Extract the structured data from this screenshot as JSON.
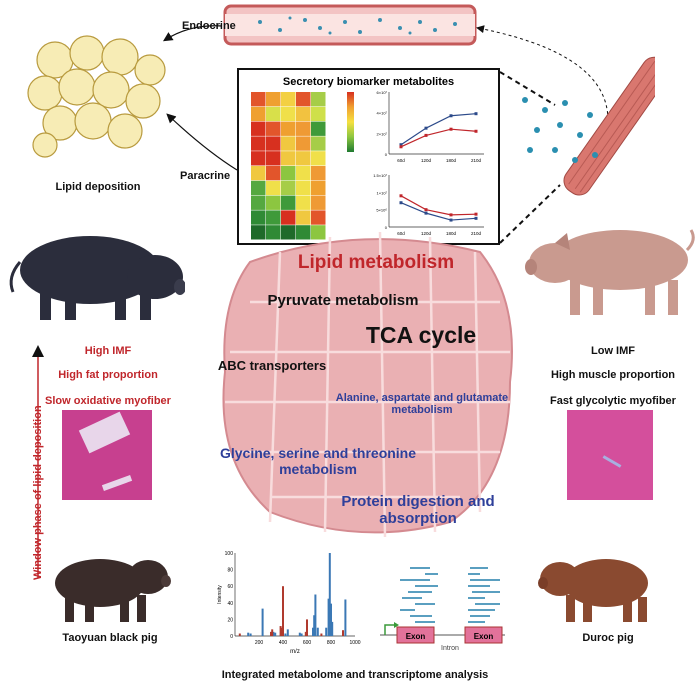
{
  "top": {
    "endocrine": "Endocrine",
    "paracrine": "Paracrine",
    "lipid_deposition": "Lipid deposition"
  },
  "box": {
    "title": "Secretory biomarker metabolites"
  },
  "left": {
    "traits": [
      "High IMF",
      "High fat proportion",
      "Slow oxidative myofiber"
    ],
    "axis_label": "Window phase of lipid deposition",
    "pig_label": "Taoyuan black pig"
  },
  "right": {
    "traits": [
      "Low IMF",
      "High muscle proportion",
      "Fast glycolytic myofiber"
    ],
    "pig_label": "Duroc pig"
  },
  "center": {
    "pathways": [
      "Lipid metabolism",
      "Pyruvate metabolism",
      "TCA cycle",
      "ABC transporters",
      "Alanine, aspartate and glutamate metabolism",
      "Glycine, serine and threonine metabolism",
      "Protein digestion and absorption"
    ]
  },
  "gene": {
    "exon1": "Exon",
    "intron": "Intron",
    "exon2": "Exon"
  },
  "bottom": {
    "caption": "Integrated metabolome and transcriptome analysis"
  },
  "colors": {
    "red_text": "#c0262b",
    "blue_text": "#2e3f9a",
    "muscle_pink": "#e8a3a8",
    "series_blue": "#2c4a8a",
    "series_red": "#c0262b"
  },
  "chart_data": [
    {
      "type": "heatmap",
      "colorscale": [
        "#d7301f",
        "#f0a030",
        "#f5e040",
        "#8cc640",
        "#1f7a30"
      ],
      "cells": [
        [
          "#e2552b",
          "#efa030",
          "#f3d043",
          "#e2552b",
          "#a6cd48"
        ],
        [
          "#efa030",
          "#d8e04a",
          "#f0e04a",
          "#f2c240",
          "#cfe04a"
        ],
        [
          "#d7301f",
          "#e2552b",
          "#efa030",
          "#ef9a35",
          "#3f9a3a"
        ],
        [
          "#d7301f",
          "#d7301f",
          "#f0c840",
          "#ef9a35",
          "#a6cd48"
        ],
        [
          "#d7301f",
          "#d7301f",
          "#f0c840",
          "#f0c840",
          "#f0e04a"
        ],
        [
          "#f0c840",
          "#e2552b",
          "#8cc640",
          "#f0e04a",
          "#ef9a35"
        ],
        [
          "#55a840",
          "#f0e04a",
          "#a6cd48",
          "#f0e04a",
          "#efa030"
        ],
        [
          "#55a840",
          "#8cc640",
          "#3f9a3a",
          "#f0e04a",
          "#ef9a35"
        ],
        [
          "#2f8a35",
          "#3f9a3a",
          "#d7301f",
          "#f0c840",
          "#e2552b"
        ],
        [
          "#1f6a2a",
          "#2f8a35",
          "#1f6a2a",
          "#2f8a35",
          "#8cc640"
        ]
      ]
    },
    {
      "type": "line",
      "categories": [
        "60d",
        "120d",
        "180d",
        "210d"
      ],
      "yticks": [
        "0",
        "2×10⁷",
        "4×10⁷",
        "6×10⁷"
      ],
      "ylim": [
        0,
        6
      ],
      "series": [
        {
          "color": "#2c4a8a",
          "values": [
            0.9,
            2.5,
            3.7,
            3.9
          ]
        },
        {
          "color": "#c0262b",
          "values": [
            0.7,
            1.8,
            2.4,
            2.2
          ]
        }
      ]
    },
    {
      "type": "line",
      "categories": [
        "60d",
        "120d",
        "180d",
        "210d"
      ],
      "yticks": [
        "0",
        "5×10⁶",
        "1×10⁷",
        "1.5×10⁷"
      ],
      "ylim": [
        0,
        15
      ],
      "series": [
        {
          "color": "#2c4a8a",
          "values": [
            7,
            4,
            2,
            2.5
          ]
        },
        {
          "color": "#c0262b",
          "values": [
            9,
            5,
            3.5,
            3.7
          ]
        }
      ]
    },
    {
      "type": "bar",
      "xlabel": "m/z",
      "ylabel": "Intensity",
      "xlim": [
        0,
        1000
      ],
      "ylim": [
        0,
        100
      ],
      "xticks": [
        "200",
        "400",
        "600",
        "800",
        "1000"
      ],
      "yticks": [
        "0",
        "20",
        "40",
        "60",
        "80",
        "100"
      ],
      "series": [
        {
          "color": "#3b78b5",
          "x": [
            110,
            130,
            230,
            320,
            335,
            420,
            440,
            540,
            555,
            650,
            660,
            670,
            690,
            760,
            780,
            790,
            800,
            810,
            920
          ],
          "y": [
            4,
            3,
            33,
            5,
            4,
            3,
            8,
            4,
            3,
            10,
            25,
            50,
            10,
            10,
            45,
            100,
            39,
            17,
            44
          ]
        },
        {
          "color": "#b03a2e",
          "x": [
            40,
            300,
            310,
            380,
            390,
            400,
            590,
            600,
            720,
            900
          ],
          "y": [
            3,
            5,
            8,
            12,
            10,
            60,
            5,
            20,
            3,
            7
          ]
        }
      ]
    }
  ]
}
